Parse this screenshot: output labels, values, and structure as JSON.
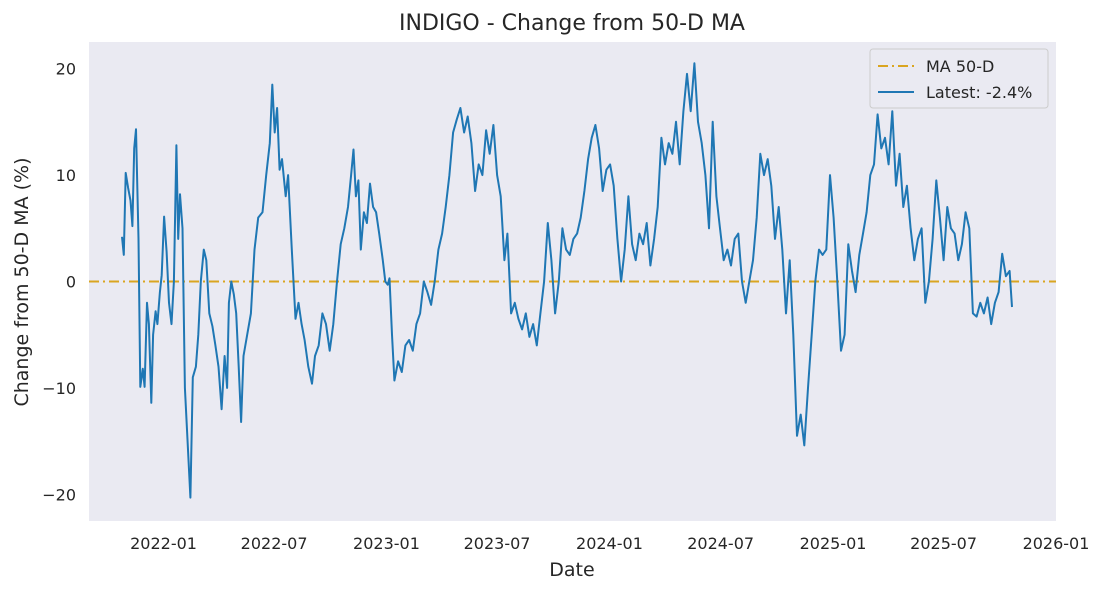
{
  "chart_data": {
    "type": "line",
    "title": "INDIGO - Change from 50-D MA",
    "xlabel": "Date",
    "ylabel": "Change from 50-D MA (%)",
    "xlim": [
      "2021-09-01",
      "2026-01-01"
    ],
    "ylim": [
      -22.5,
      22.5
    ],
    "grid": false,
    "legend_position": "top-right",
    "x_ticks": [
      "2022-01",
      "2022-07",
      "2023-01",
      "2023-07",
      "2024-01",
      "2024-07",
      "2025-01",
      "2025-07",
      "2026-01"
    ],
    "y_ticks": [
      20,
      10,
      0,
      -10,
      -20
    ],
    "y_tick_labels": [
      "20",
      "10",
      "0",
      "−10",
      "−20"
    ],
    "reference_line": {
      "name": "MA 50-D",
      "value": 0,
      "color": "#daa520",
      "style": "dash-dot"
    },
    "series": [
      {
        "name": "Latest: -2.4%",
        "color": "#1f77b4",
        "points": [
          [
            "2021-10-25",
            4.2
          ],
          [
            "2021-10-28",
            2.5
          ],
          [
            "2021-10-31",
            10.2
          ],
          [
            "2021-11-04",
            8.8
          ],
          [
            "2021-11-08",
            7.6
          ],
          [
            "2021-11-11",
            5.2
          ],
          [
            "2021-11-14",
            12.5
          ],
          [
            "2021-11-17",
            14.3
          ],
          [
            "2021-11-21",
            4.0
          ],
          [
            "2021-11-24",
            -9.9
          ],
          [
            "2021-11-28",
            -8.2
          ],
          [
            "2021-12-01",
            -9.9
          ],
          [
            "2021-12-05",
            -2.0
          ],
          [
            "2021-12-08",
            -4.0
          ],
          [
            "2021-12-12",
            -11.4
          ],
          [
            "2021-12-15",
            -5.0
          ],
          [
            "2021-12-19",
            -2.8
          ],
          [
            "2021-12-22",
            -4.0
          ],
          [
            "2021-12-26",
            -1.0
          ],
          [
            "2021-12-29",
            0.6
          ],
          [
            "2022-01-02",
            6.1
          ],
          [
            "2022-01-06",
            2.8
          ],
          [
            "2022-01-10",
            -2.0
          ],
          [
            "2022-01-14",
            -4.0
          ],
          [
            "2022-01-18",
            0.0
          ],
          [
            "2022-01-22",
            12.8
          ],
          [
            "2022-01-25",
            4.0
          ],
          [
            "2022-01-28",
            8.2
          ],
          [
            "2022-02-01",
            5.0
          ],
          [
            "2022-02-05",
            -10.0
          ],
          [
            "2022-02-09",
            -14.5
          ],
          [
            "2022-02-14",
            -20.3
          ],
          [
            "2022-02-18",
            -9.0
          ],
          [
            "2022-02-23",
            -8.0
          ],
          [
            "2022-02-27",
            -5.0
          ],
          [
            "2022-03-03",
            0.0
          ],
          [
            "2022-03-08",
            3.0
          ],
          [
            "2022-03-12",
            2.0
          ],
          [
            "2022-03-17",
            -3.0
          ],
          [
            "2022-03-22",
            -4.2
          ],
          [
            "2022-03-27",
            -6.0
          ],
          [
            "2022-04-01",
            -8.0
          ],
          [
            "2022-04-06",
            -12.0
          ],
          [
            "2022-04-11",
            -7.0
          ],
          [
            "2022-04-15",
            -10.0
          ],
          [
            "2022-04-18",
            -2.0
          ],
          [
            "2022-04-22",
            0.0
          ],
          [
            "2022-04-26",
            -1.2
          ],
          [
            "2022-04-30",
            -3.0
          ],
          [
            "2022-05-04",
            -8.0
          ],
          [
            "2022-05-08",
            -13.2
          ],
          [
            "2022-05-12",
            -7.0
          ],
          [
            "2022-05-18",
            -5.0
          ],
          [
            "2022-05-24",
            -3.0
          ],
          [
            "2022-05-30",
            3.0
          ],
          [
            "2022-06-05",
            6.0
          ],
          [
            "2022-06-12",
            6.5
          ],
          [
            "2022-06-18",
            10.0
          ],
          [
            "2022-06-24",
            13.0
          ],
          [
            "2022-06-28",
            18.5
          ],
          [
            "2022-07-02",
            14.0
          ],
          [
            "2022-07-06",
            16.3
          ],
          [
            "2022-07-10",
            10.5
          ],
          [
            "2022-07-14",
            11.5
          ],
          [
            "2022-07-20",
            8.0
          ],
          [
            "2022-07-24",
            10.0
          ],
          [
            "2022-07-30",
            3.0
          ],
          [
            "2022-08-05",
            -3.5
          ],
          [
            "2022-08-10",
            -2.0
          ],
          [
            "2022-08-15",
            -4.0
          ],
          [
            "2022-08-20",
            -5.5
          ],
          [
            "2022-08-26",
            -8.0
          ],
          [
            "2022-09-01",
            -9.6
          ],
          [
            "2022-09-06",
            -7.0
          ],
          [
            "2022-09-12",
            -6.0
          ],
          [
            "2022-09-18",
            -3.0
          ],
          [
            "2022-09-24",
            -4.0
          ],
          [
            "2022-09-30",
            -6.5
          ],
          [
            "2022-10-06",
            -4.0
          ],
          [
            "2022-10-12",
            0.0
          ],
          [
            "2022-10-18",
            3.5
          ],
          [
            "2022-10-24",
            5.0
          ],
          [
            "2022-10-30",
            7.0
          ],
          [
            "2022-11-04",
            10.0
          ],
          [
            "2022-11-08",
            12.4
          ],
          [
            "2022-11-12",
            8.0
          ],
          [
            "2022-11-16",
            9.5
          ],
          [
            "2022-11-20",
            3.0
          ],
          [
            "2022-11-25",
            6.5
          ],
          [
            "2022-11-30",
            5.5
          ],
          [
            "2022-12-05",
            9.2
          ],
          [
            "2022-12-10",
            7.0
          ],
          [
            "2022-12-15",
            6.5
          ],
          [
            "2022-12-20",
            4.5
          ],
          [
            "2022-12-26",
            2.0
          ],
          [
            "2022-12-30",
            0.0
          ],
          [
            "2023-01-03",
            -0.3
          ],
          [
            "2023-01-06",
            0.3
          ],
          [
            "2023-01-10",
            -5.0
          ],
          [
            "2023-01-14",
            -9.3
          ],
          [
            "2023-01-20",
            -7.5
          ],
          [
            "2023-01-26",
            -8.5
          ],
          [
            "2023-02-01",
            -6.0
          ],
          [
            "2023-02-07",
            -5.5
          ],
          [
            "2023-02-13",
            -6.5
          ],
          [
            "2023-02-19",
            -4.0
          ],
          [
            "2023-02-25",
            -3.0
          ],
          [
            "2023-03-03",
            0.0
          ],
          [
            "2023-03-09",
            -1.0
          ],
          [
            "2023-03-15",
            -2.2
          ],
          [
            "2023-03-21",
            0.0
          ],
          [
            "2023-03-27",
            3.0
          ],
          [
            "2023-04-02",
            4.5
          ],
          [
            "2023-04-08",
            7.0
          ],
          [
            "2023-04-14",
            10.0
          ],
          [
            "2023-04-20",
            14.0
          ],
          [
            "2023-04-26",
            15.2
          ],
          [
            "2023-05-02",
            16.3
          ],
          [
            "2023-05-08",
            14.0
          ],
          [
            "2023-05-14",
            15.5
          ],
          [
            "2023-05-20",
            13.0
          ],
          [
            "2023-05-26",
            8.5
          ],
          [
            "2023-06-01",
            11.0
          ],
          [
            "2023-06-07",
            10.0
          ],
          [
            "2023-06-13",
            14.2
          ],
          [
            "2023-06-19",
            12.0
          ],
          [
            "2023-06-25",
            14.7
          ],
          [
            "2023-07-01",
            10.0
          ],
          [
            "2023-07-07",
            8.0
          ],
          [
            "2023-07-13",
            2.0
          ],
          [
            "2023-07-18",
            4.5
          ],
          [
            "2023-07-24",
            -3.0
          ],
          [
            "2023-07-30",
            -2.0
          ],
          [
            "2023-08-05",
            -3.5
          ],
          [
            "2023-08-11",
            -4.5
          ],
          [
            "2023-08-17",
            -3.0
          ],
          [
            "2023-08-23",
            -5.2
          ],
          [
            "2023-08-29",
            -4.0
          ],
          [
            "2023-09-04",
            -6.0
          ],
          [
            "2023-09-10",
            -3.0
          ],
          [
            "2023-09-16",
            0.0
          ],
          [
            "2023-09-22",
            5.5
          ],
          [
            "2023-09-28",
            2.0
          ],
          [
            "2023-10-04",
            -3.0
          ],
          [
            "2023-10-10",
            0.0
          ],
          [
            "2023-10-16",
            5.0
          ],
          [
            "2023-10-22",
            3.0
          ],
          [
            "2023-10-28",
            2.5
          ],
          [
            "2023-11-03",
            4.0
          ],
          [
            "2023-11-09",
            4.5
          ],
          [
            "2023-11-15",
            6.0
          ],
          [
            "2023-11-21",
            8.5
          ],
          [
            "2023-11-27",
            11.5
          ],
          [
            "2023-12-03",
            13.5
          ],
          [
            "2023-12-09",
            14.7
          ],
          [
            "2023-12-15",
            12.5
          ],
          [
            "2023-12-21",
            8.5
          ],
          [
            "2023-12-27",
            10.5
          ],
          [
            "2024-01-02",
            11.0
          ],
          [
            "2024-01-08",
            9.0
          ],
          [
            "2024-01-14",
            4.0
          ],
          [
            "2024-01-20",
            0.0
          ],
          [
            "2024-01-26",
            3.0
          ],
          [
            "2024-02-01",
            8.0
          ],
          [
            "2024-02-07",
            3.5
          ],
          [
            "2024-02-13",
            2.0
          ],
          [
            "2024-02-19",
            4.5
          ],
          [
            "2024-02-25",
            3.5
          ],
          [
            "2024-03-02",
            5.5
          ],
          [
            "2024-03-08",
            1.5
          ],
          [
            "2024-03-14",
            4.0
          ],
          [
            "2024-03-20",
            7.0
          ],
          [
            "2024-03-26",
            13.5
          ],
          [
            "2024-04-01",
            11.0
          ],
          [
            "2024-04-07",
            13.0
          ],
          [
            "2024-04-13",
            12.0
          ],
          [
            "2024-04-19",
            15.0
          ],
          [
            "2024-04-25",
            11.0
          ],
          [
            "2024-05-01",
            16.0
          ],
          [
            "2024-05-07",
            19.5
          ],
          [
            "2024-05-13",
            16.0
          ],
          [
            "2024-05-19",
            20.5
          ],
          [
            "2024-05-25",
            15.0
          ],
          [
            "2024-05-31",
            13.0
          ],
          [
            "2024-06-06",
            10.0
          ],
          [
            "2024-06-12",
            5.0
          ],
          [
            "2024-06-18",
            15.0
          ],
          [
            "2024-06-24",
            8.0
          ],
          [
            "2024-06-30",
            5.0
          ],
          [
            "2024-07-06",
            2.0
          ],
          [
            "2024-07-12",
            3.0
          ],
          [
            "2024-07-18",
            1.5
          ],
          [
            "2024-07-24",
            4.0
          ],
          [
            "2024-07-30",
            4.5
          ],
          [
            "2024-08-05",
            0.0
          ],
          [
            "2024-08-11",
            -2.0
          ],
          [
            "2024-08-17",
            0.0
          ],
          [
            "2024-08-23",
            2.0
          ],
          [
            "2024-08-29",
            6.0
          ],
          [
            "2024-09-04",
            12.0
          ],
          [
            "2024-09-10",
            10.0
          ],
          [
            "2024-09-16",
            11.5
          ],
          [
            "2024-09-22",
            9.0
          ],
          [
            "2024-09-28",
            4.0
          ],
          [
            "2024-10-04",
            7.0
          ],
          [
            "2024-10-10",
            3.0
          ],
          [
            "2024-10-16",
            -3.0
          ],
          [
            "2024-10-22",
            2.0
          ],
          [
            "2024-10-28",
            -5.0
          ],
          [
            "2024-11-03",
            -14.5
          ],
          [
            "2024-11-09",
            -12.5
          ],
          [
            "2024-11-15",
            -15.4
          ],
          [
            "2024-11-21",
            -10.0
          ],
          [
            "2024-11-27",
            -5.0
          ],
          [
            "2024-12-03",
            0.0
          ],
          [
            "2024-12-09",
            3.0
          ],
          [
            "2024-12-15",
            2.5
          ],
          [
            "2024-12-21",
            3.0
          ],
          [
            "2024-12-27",
            10.0
          ],
          [
            "2025-01-02",
            6.0
          ],
          [
            "2025-01-08",
            0.0
          ],
          [
            "2025-01-14",
            -6.5
          ],
          [
            "2025-01-20",
            -5.0
          ],
          [
            "2025-01-26",
            3.5
          ],
          [
            "2025-02-01",
            1.0
          ],
          [
            "2025-02-07",
            -1.0
          ],
          [
            "2025-02-13",
            2.5
          ],
          [
            "2025-02-19",
            4.5
          ],
          [
            "2025-02-25",
            6.5
          ],
          [
            "2025-03-03",
            10.0
          ],
          [
            "2025-03-09",
            11.0
          ],
          [
            "2025-03-15",
            15.7
          ],
          [
            "2025-03-21",
            12.5
          ],
          [
            "2025-03-27",
            13.5
          ],
          [
            "2025-04-02",
            11.0
          ],
          [
            "2025-04-08",
            16.0
          ],
          [
            "2025-04-14",
            9.0
          ],
          [
            "2025-04-20",
            12.0
          ],
          [
            "2025-04-26",
            7.0
          ],
          [
            "2025-05-02",
            9.0
          ],
          [
            "2025-05-08",
            5.0
          ],
          [
            "2025-05-14",
            2.0
          ],
          [
            "2025-05-20",
            4.0
          ],
          [
            "2025-05-26",
            5.0
          ],
          [
            "2025-06-01",
            -2.0
          ],
          [
            "2025-06-07",
            0.0
          ],
          [
            "2025-06-13",
            4.0
          ],
          [
            "2025-06-19",
            9.5
          ],
          [
            "2025-06-25",
            6.0
          ],
          [
            "2025-07-01",
            2.0
          ],
          [
            "2025-07-07",
            7.0
          ],
          [
            "2025-07-13",
            5.0
          ],
          [
            "2025-07-19",
            4.5
          ],
          [
            "2025-07-25",
            2.0
          ],
          [
            "2025-07-31",
            3.5
          ],
          [
            "2025-08-06",
            6.5
          ],
          [
            "2025-08-12",
            5.0
          ],
          [
            "2025-08-18",
            -3.0
          ],
          [
            "2025-08-24",
            -3.3
          ],
          [
            "2025-08-30",
            -2.0
          ],
          [
            "2025-09-05",
            -3.0
          ],
          [
            "2025-09-11",
            -1.5
          ],
          [
            "2025-09-17",
            -4.0
          ],
          [
            "2025-09-23",
            -2.0
          ],
          [
            "2025-09-29",
            -1.0
          ],
          [
            "2025-10-05",
            2.6
          ],
          [
            "2025-10-11",
            0.5
          ],
          [
            "2025-10-17",
            1.0
          ],
          [
            "2025-10-21",
            -2.4
          ]
        ]
      }
    ]
  }
}
